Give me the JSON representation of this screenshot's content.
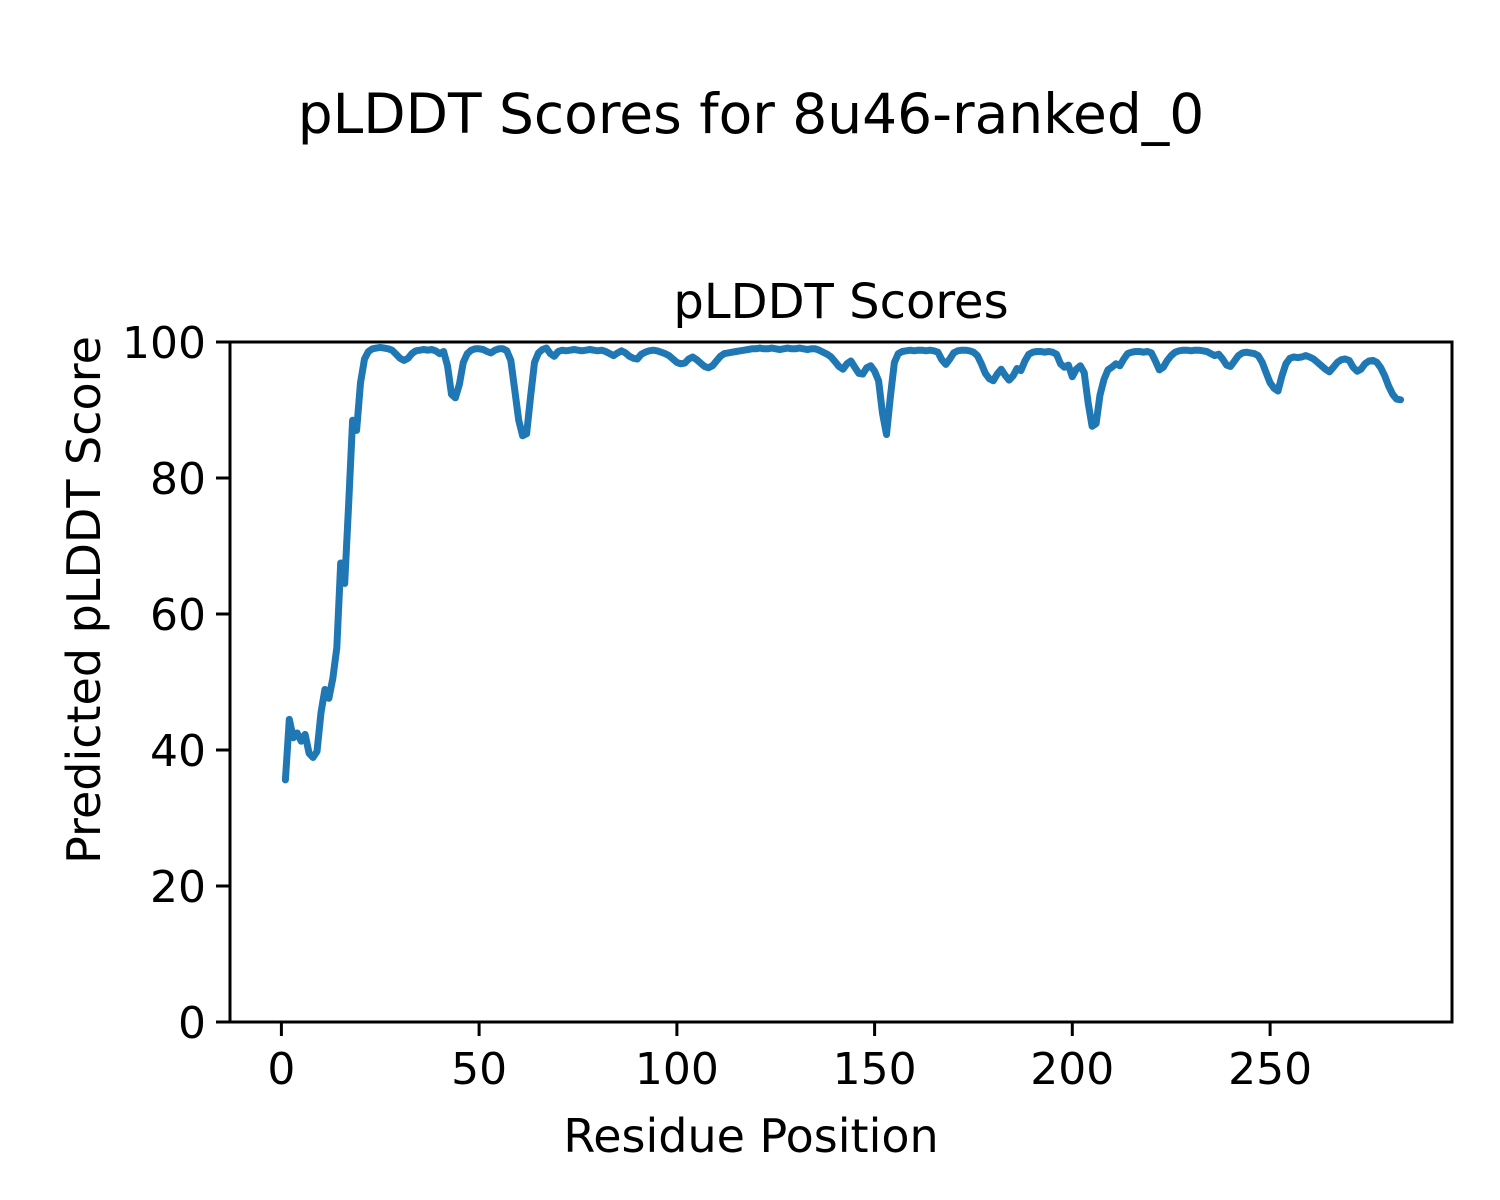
{
  "figure": {
    "suptitle": "pLDDT Scores for 8u46-ranked_0",
    "background_color": "#ffffff",
    "text_color": "#000000"
  },
  "chart_data": {
    "type": "line",
    "title": "pLDDT Scores",
    "xlabel": "Residue Position",
    "ylabel": "Predicted pLDDT Score",
    "xlim": [
      -13,
      296
    ],
    "ylim": [
      0,
      100
    ],
    "xticks": [
      0,
      50,
      100,
      150,
      200,
      250
    ],
    "yticks": [
      0,
      20,
      40,
      60,
      80,
      100
    ],
    "grid": false,
    "legend": "none",
    "line_color": "#1f77b4",
    "line_width": 7,
    "series": [
      {
        "name": "pLDDT",
        "x_start": 1,
        "x_step": 1,
        "values": [
          35.6,
          44.5,
          41.8,
          42.5,
          41.3,
          42.3,
          39.5,
          38.9,
          39.8,
          45.5,
          48.9,
          47.6,
          50.5,
          55.0,
          67.5,
          64.5,
          76.0,
          88.5,
          87.0,
          94.0,
          97.5,
          98.6,
          99.0,
          99.1,
          99.2,
          99.1,
          99.0,
          98.8,
          98.2,
          97.6,
          97.3,
          97.6,
          98.3,
          98.7,
          98.8,
          98.9,
          98.8,
          98.9,
          98.7,
          98.3,
          98.6,
          96.5,
          92.3,
          91.8,
          93.8,
          97.0,
          98.3,
          98.8,
          99.0,
          99.0,
          98.9,
          98.6,
          98.4,
          98.8,
          99.0,
          99.0,
          98.7,
          97.3,
          93.0,
          88.5,
          86.2,
          86.5,
          92.0,
          97.0,
          98.4,
          98.9,
          99.1,
          98.3,
          97.9,
          98.6,
          98.8,
          98.7,
          98.8,
          98.9,
          98.8,
          98.7,
          98.8,
          98.9,
          98.8,
          98.7,
          98.8,
          98.6,
          98.3,
          98.0,
          98.4,
          98.7,
          98.4,
          97.9,
          97.6,
          97.5,
          98.2,
          98.5,
          98.7,
          98.8,
          98.7,
          98.5,
          98.3,
          98.0,
          97.5,
          97.0,
          96.8,
          96.9,
          97.5,
          97.8,
          97.4,
          96.9,
          96.4,
          96.2,
          96.5,
          97.2,
          97.9,
          98.3,
          98.4,
          98.5,
          98.6,
          98.7,
          98.8,
          98.9,
          99.0,
          99.0,
          99.1,
          99.0,
          99.0,
          99.1,
          99.0,
          98.9,
          99.0,
          99.1,
          99.0,
          99.0,
          99.1,
          99.0,
          98.9,
          99.0,
          99.0,
          98.8,
          98.5,
          98.2,
          97.8,
          97.1,
          96.4,
          96.0,
          96.8,
          97.2,
          96.3,
          95.4,
          95.3,
          96.2,
          96.5,
          95.7,
          94.3,
          89.5,
          86.4,
          92.0,
          97.0,
          98.3,
          98.6,
          98.7,
          98.8,
          98.7,
          98.8,
          98.8,
          98.7,
          98.8,
          98.7,
          98.5,
          97.4,
          96.7,
          97.5,
          98.4,
          98.7,
          98.8,
          98.8,
          98.7,
          98.5,
          98.0,
          96.8,
          95.4,
          94.6,
          94.3,
          95.3,
          96.0,
          95.1,
          94.4,
          95.0,
          96.1,
          95.8,
          97.2,
          98.2,
          98.5,
          98.6,
          98.6,
          98.5,
          98.6,
          98.5,
          98.2,
          96.8,
          96.3,
          96.6,
          94.9,
          96.0,
          96.5,
          95.5,
          91.0,
          87.6,
          88.0,
          92.2,
          94.5,
          95.9,
          96.3,
          96.8,
          96.5,
          97.5,
          98.3,
          98.5,
          98.6,
          98.6,
          98.5,
          98.6,
          98.4,
          97.2,
          95.9,
          96.3,
          97.3,
          98.0,
          98.5,
          98.7,
          98.8,
          98.8,
          98.7,
          98.8,
          98.8,
          98.7,
          98.6,
          98.3,
          98.0,
          98.2,
          97.5,
          96.6,
          96.4,
          97.2,
          98.0,
          98.4,
          98.5,
          98.4,
          98.3,
          98.0,
          97.0,
          95.5,
          94.0,
          93.2,
          92.8,
          95.0,
          96.8,
          97.6,
          97.8,
          97.7,
          97.8,
          98.0,
          97.8,
          97.5,
          97.0,
          96.5,
          96.0,
          95.6,
          96.3,
          97.0,
          97.4,
          97.5,
          97.3,
          96.3,
          95.7,
          96.0,
          96.8,
          97.2,
          97.3,
          97.0,
          96.2,
          95.0,
          93.5,
          92.3,
          91.6,
          91.5
        ]
      }
    ]
  }
}
